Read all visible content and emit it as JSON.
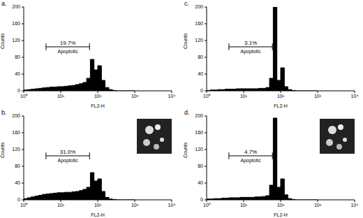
{
  "chart_data": [
    {
      "type": "histogram",
      "title": "a.",
      "x_label": "FL2-H",
      "y_label": "Counts",
      "bins": [
        1,
        1.26,
        1.58,
        2.0,
        2.51,
        3.16,
        3.98,
        5.01,
        6.31,
        7.94,
        10,
        12.6,
        15.8,
        20.0,
        25.1,
        31.6,
        39.8,
        50.1,
        63.1,
        79.4,
        100,
        126,
        158,
        200,
        251,
        316,
        398,
        501,
        631,
        794,
        1000
      ],
      "counts": [
        2,
        3,
        4,
        5,
        6,
        7,
        8,
        9,
        9,
        10,
        10,
        11,
        12,
        13,
        15,
        17,
        20,
        30,
        75,
        50,
        60,
        25,
        8,
        3,
        1,
        0,
        0,
        0,
        0,
        0
      ],
      "color": "#000000",
      "log": "x",
      "xlim": [
        1,
        10000
      ],
      "xticks": [
        {
          "value": 1,
          "label": "10⁰"
        },
        {
          "value": 10,
          "label": "10¹"
        },
        {
          "value": 100,
          "label": "10²"
        },
        {
          "value": 1000,
          "label": "10³"
        },
        {
          "value": 10000,
          "label": "10⁴"
        }
      ],
      "ylim": [
        0,
        200
      ],
      "yticks": [
        0,
        40,
        80,
        120,
        160,
        200
      ],
      "gate": {
        "range": [
          4,
          60
        ],
        "value": 19.7,
        "label": "19.7%",
        "name": "Apoptotic"
      }
    },
    {
      "type": "histogram",
      "title": "b.",
      "x_label": "FL2-H",
      "y_label": "Counts",
      "bins": [
        1,
        1.26,
        1.58,
        2.0,
        2.51,
        3.16,
        3.98,
        5.01,
        6.31,
        7.94,
        10,
        12.6,
        15.8,
        20.0,
        25.1,
        31.6,
        39.8,
        50.1,
        63.1,
        79.4,
        100,
        126,
        158,
        200,
        251,
        316,
        398,
        501,
        631,
        794,
        1000
      ],
      "counts": [
        3,
        5,
        7,
        9,
        11,
        13,
        14,
        15,
        16,
        17,
        17,
        18,
        18,
        19,
        20,
        22,
        25,
        30,
        65,
        45,
        50,
        20,
        6,
        2,
        1,
        0,
        0,
        0,
        0,
        0
      ],
      "color": "#000000",
      "log": "x",
      "xlim": [
        1,
        10000
      ],
      "xticks": [
        {
          "value": 1,
          "label": "10⁰"
        },
        {
          "value": 10,
          "label": "10¹"
        },
        {
          "value": 100,
          "label": "10²"
        },
        {
          "value": 1000,
          "label": "10³"
        },
        {
          "value": 10000,
          "label": "10⁴"
        }
      ],
      "ylim": [
        0,
        200
      ],
      "yticks": [
        0,
        40,
        80,
        120,
        160,
        200
      ],
      "gate": {
        "range": [
          4,
          60
        ],
        "value": 31.0,
        "label": "31.0%",
        "name": "Apoptotic"
      }
    },
    {
      "type": "histogram",
      "title": "c.",
      "x_label": "FL2-H",
      "y_label": "Counts",
      "bins": [
        1,
        1.26,
        1.58,
        2.0,
        2.51,
        3.16,
        3.98,
        5.01,
        6.31,
        7.94,
        10,
        12.6,
        15.8,
        20.0,
        25.1,
        31.6,
        39.8,
        50.1,
        63.1,
        79.4,
        100,
        126,
        158,
        200,
        251,
        316,
        398,
        501,
        631,
        794,
        1000
      ],
      "counts": [
        1,
        2,
        2,
        3,
        3,
        4,
        4,
        4,
        5,
        5,
        5,
        5,
        5,
        5,
        6,
        6,
        8,
        30,
        200,
        25,
        55,
        10,
        3,
        1,
        0,
        0,
        0,
        0,
        0,
        0
      ],
      "color": "#000000",
      "log": "x",
      "xlim": [
        1,
        10000
      ],
      "xticks": [
        {
          "value": 1,
          "label": "10⁰"
        },
        {
          "value": 10,
          "label": "10¹"
        },
        {
          "value": 100,
          "label": "10²"
        },
        {
          "value": 1000,
          "label": "10³"
        },
        {
          "value": 10000,
          "label": "10⁴"
        }
      ],
      "ylim": [
        0,
        200
      ],
      "yticks": [
        0,
        40,
        80,
        120,
        160,
        200
      ],
      "gate": {
        "range": [
          4,
          60
        ],
        "value": 3.1,
        "label": "3.1%",
        "name": "Apoptotic"
      }
    },
    {
      "type": "histogram",
      "title": "d.",
      "x_label": "FL2-H",
      "y_label": "Counts",
      "bins": [
        1,
        1.26,
        1.58,
        2.0,
        2.51,
        3.16,
        3.98,
        5.01,
        6.31,
        7.94,
        10,
        12.6,
        15.8,
        20.0,
        25.1,
        31.6,
        39.8,
        50.1,
        63.1,
        79.4,
        100,
        126,
        158,
        200,
        251,
        316,
        398,
        501,
        631,
        794,
        1000
      ],
      "counts": [
        2,
        2,
        3,
        3,
        4,
        4,
        5,
        5,
        5,
        6,
        6,
        6,
        6,
        7,
        7,
        8,
        10,
        35,
        195,
        30,
        50,
        12,
        3,
        1,
        0,
        0,
        0,
        0,
        0,
        0
      ],
      "color": "#000000",
      "log": "x",
      "xlim": [
        1,
        10000
      ],
      "xticks": [
        {
          "value": 1,
          "label": "10⁰"
        },
        {
          "value": 10,
          "label": "10¹"
        },
        {
          "value": 100,
          "label": "10²"
        },
        {
          "value": 1000,
          "label": "10³"
        },
        {
          "value": 10000,
          "label": "10⁴"
        }
      ],
      "ylim": [
        0,
        200
      ],
      "yticks": [
        0,
        40,
        80,
        120,
        160,
        200
      ],
      "gate": {
        "range": [
          4,
          60
        ],
        "value": 4.7,
        "label": "4.7%",
        "name": "Apoptotic"
      }
    }
  ]
}
